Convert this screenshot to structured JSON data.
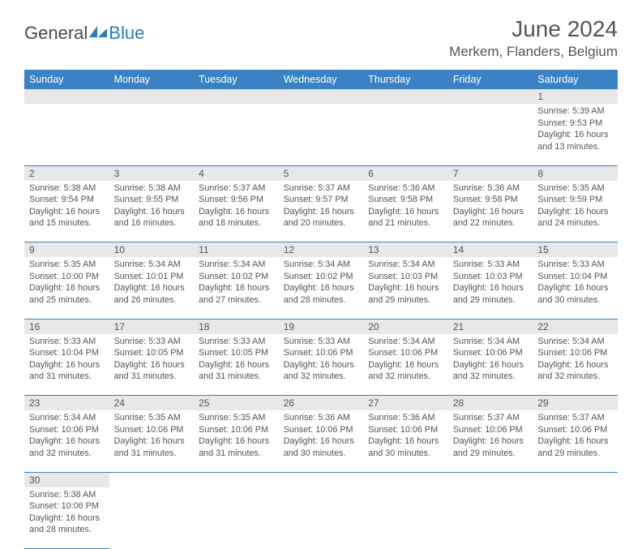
{
  "brand": {
    "part1": "General",
    "part2": "Blue"
  },
  "title": "June 2024",
  "location": "Merkem, Flanders, Belgium",
  "colors": {
    "header_bg": "#3a82c4",
    "header_fg": "#ffffff",
    "daynum_bg": "#e8e8e8",
    "text": "#555555",
    "rule": "#3a82c4",
    "logo_blue": "#2b7bbf"
  },
  "weekdays": [
    "Sunday",
    "Monday",
    "Tuesday",
    "Wednesday",
    "Thursday",
    "Friday",
    "Saturday"
  ],
  "weeks": [
    [
      null,
      null,
      null,
      null,
      null,
      null,
      {
        "n": "1",
        "sr": "Sunrise: 5:39 AM",
        "ss": "Sunset: 9:53 PM",
        "d1": "Daylight: 16 hours",
        "d2": "and 13 minutes."
      }
    ],
    [
      {
        "n": "2",
        "sr": "Sunrise: 5:38 AM",
        "ss": "Sunset: 9:54 PM",
        "d1": "Daylight: 16 hours",
        "d2": "and 15 minutes."
      },
      {
        "n": "3",
        "sr": "Sunrise: 5:38 AM",
        "ss": "Sunset: 9:55 PM",
        "d1": "Daylight: 16 hours",
        "d2": "and 16 minutes."
      },
      {
        "n": "4",
        "sr": "Sunrise: 5:37 AM",
        "ss": "Sunset: 9:56 PM",
        "d1": "Daylight: 16 hours",
        "d2": "and 18 minutes."
      },
      {
        "n": "5",
        "sr": "Sunrise: 5:37 AM",
        "ss": "Sunset: 9:57 PM",
        "d1": "Daylight: 16 hours",
        "d2": "and 20 minutes."
      },
      {
        "n": "6",
        "sr": "Sunrise: 5:36 AM",
        "ss": "Sunset: 9:58 PM",
        "d1": "Daylight: 16 hours",
        "d2": "and 21 minutes."
      },
      {
        "n": "7",
        "sr": "Sunrise: 5:36 AM",
        "ss": "Sunset: 9:58 PM",
        "d1": "Daylight: 16 hours",
        "d2": "and 22 minutes."
      },
      {
        "n": "8",
        "sr": "Sunrise: 5:35 AM",
        "ss": "Sunset: 9:59 PM",
        "d1": "Daylight: 16 hours",
        "d2": "and 24 minutes."
      }
    ],
    [
      {
        "n": "9",
        "sr": "Sunrise: 5:35 AM",
        "ss": "Sunset: 10:00 PM",
        "d1": "Daylight: 16 hours",
        "d2": "and 25 minutes."
      },
      {
        "n": "10",
        "sr": "Sunrise: 5:34 AM",
        "ss": "Sunset: 10:01 PM",
        "d1": "Daylight: 16 hours",
        "d2": "and 26 minutes."
      },
      {
        "n": "11",
        "sr": "Sunrise: 5:34 AM",
        "ss": "Sunset: 10:02 PM",
        "d1": "Daylight: 16 hours",
        "d2": "and 27 minutes."
      },
      {
        "n": "12",
        "sr": "Sunrise: 5:34 AM",
        "ss": "Sunset: 10:02 PM",
        "d1": "Daylight: 16 hours",
        "d2": "and 28 minutes."
      },
      {
        "n": "13",
        "sr": "Sunrise: 5:34 AM",
        "ss": "Sunset: 10:03 PM",
        "d1": "Daylight: 16 hours",
        "d2": "and 29 minutes."
      },
      {
        "n": "14",
        "sr": "Sunrise: 5:33 AM",
        "ss": "Sunset: 10:03 PM",
        "d1": "Daylight: 16 hours",
        "d2": "and 29 minutes."
      },
      {
        "n": "15",
        "sr": "Sunrise: 5:33 AM",
        "ss": "Sunset: 10:04 PM",
        "d1": "Daylight: 16 hours",
        "d2": "and 30 minutes."
      }
    ],
    [
      {
        "n": "16",
        "sr": "Sunrise: 5:33 AM",
        "ss": "Sunset: 10:04 PM",
        "d1": "Daylight: 16 hours",
        "d2": "and 31 minutes."
      },
      {
        "n": "17",
        "sr": "Sunrise: 5:33 AM",
        "ss": "Sunset: 10:05 PM",
        "d1": "Daylight: 16 hours",
        "d2": "and 31 minutes."
      },
      {
        "n": "18",
        "sr": "Sunrise: 5:33 AM",
        "ss": "Sunset: 10:05 PM",
        "d1": "Daylight: 16 hours",
        "d2": "and 31 minutes."
      },
      {
        "n": "19",
        "sr": "Sunrise: 5:33 AM",
        "ss": "Sunset: 10:06 PM",
        "d1": "Daylight: 16 hours",
        "d2": "and 32 minutes."
      },
      {
        "n": "20",
        "sr": "Sunrise: 5:34 AM",
        "ss": "Sunset: 10:06 PM",
        "d1": "Daylight: 16 hours",
        "d2": "and 32 minutes."
      },
      {
        "n": "21",
        "sr": "Sunrise: 5:34 AM",
        "ss": "Sunset: 10:06 PM",
        "d1": "Daylight: 16 hours",
        "d2": "and 32 minutes."
      },
      {
        "n": "22",
        "sr": "Sunrise: 5:34 AM",
        "ss": "Sunset: 10:06 PM",
        "d1": "Daylight: 16 hours",
        "d2": "and 32 minutes."
      }
    ],
    [
      {
        "n": "23",
        "sr": "Sunrise: 5:34 AM",
        "ss": "Sunset: 10:06 PM",
        "d1": "Daylight: 16 hours",
        "d2": "and 32 minutes."
      },
      {
        "n": "24",
        "sr": "Sunrise: 5:35 AM",
        "ss": "Sunset: 10:06 PM",
        "d1": "Daylight: 16 hours",
        "d2": "and 31 minutes."
      },
      {
        "n": "25",
        "sr": "Sunrise: 5:35 AM",
        "ss": "Sunset: 10:06 PM",
        "d1": "Daylight: 16 hours",
        "d2": "and 31 minutes."
      },
      {
        "n": "26",
        "sr": "Sunrise: 5:36 AM",
        "ss": "Sunset: 10:06 PM",
        "d1": "Daylight: 16 hours",
        "d2": "and 30 minutes."
      },
      {
        "n": "27",
        "sr": "Sunrise: 5:36 AM",
        "ss": "Sunset: 10:06 PM",
        "d1": "Daylight: 16 hours",
        "d2": "and 30 minutes."
      },
      {
        "n": "28",
        "sr": "Sunrise: 5:37 AM",
        "ss": "Sunset: 10:06 PM",
        "d1": "Daylight: 16 hours",
        "d2": "and 29 minutes."
      },
      {
        "n": "29",
        "sr": "Sunrise: 5:37 AM",
        "ss": "Sunset: 10:06 PM",
        "d1": "Daylight: 16 hours",
        "d2": "and 29 minutes."
      }
    ],
    [
      {
        "n": "30",
        "sr": "Sunrise: 5:38 AM",
        "ss": "Sunset: 10:06 PM",
        "d1": "Daylight: 16 hours",
        "d2": "and 28 minutes."
      },
      null,
      null,
      null,
      null,
      null,
      null
    ]
  ]
}
